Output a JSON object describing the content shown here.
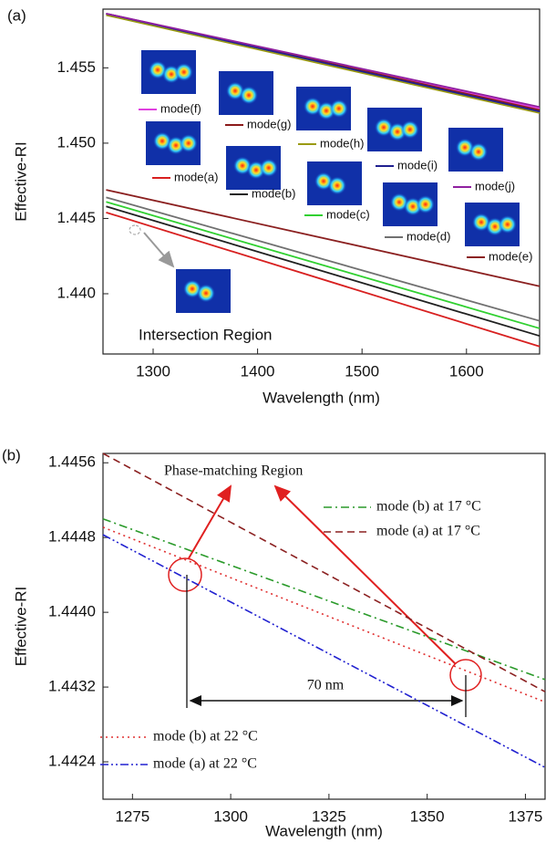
{
  "chart_data": [
    {
      "type": "line",
      "panel_label": "(a)",
      "xlabel": "Wavelength (nm)",
      "ylabel": "Effective-RI",
      "annotations": [
        "Intersection Region"
      ],
      "x": [
        1255,
        1670
      ],
      "series": [
        {
          "name": "mode(f)",
          "color": "#e040e0",
          "dash": "solid",
          "values": [
            1.4586,
            1.4523
          ]
        },
        {
          "name": "mode(g)",
          "color": "#8b1a1a",
          "dash": "solid",
          "values": [
            1.4586,
            1.4522
          ]
        },
        {
          "name": "mode(h)",
          "color": "#9a9a10",
          "dash": "solid",
          "values": [
            1.4585,
            1.452
          ]
        },
        {
          "name": "mode(i)",
          "color": "#20208f",
          "dash": "solid",
          "values": [
            1.4586,
            1.4521
          ]
        },
        {
          "name": "mode(j)",
          "color": "#9020a0",
          "dash": "solid",
          "values": [
            1.4586,
            1.4524
          ]
        },
        {
          "name": "mode(a)",
          "color": "#d82020",
          "dash": "solid",
          "values": [
            1.4454,
            1.4365
          ]
        },
        {
          "name": "mode(b)",
          "color": "#202020",
          "dash": "solid",
          "values": [
            1.4458,
            1.4372
          ]
        },
        {
          "name": "mode(c)",
          "color": "#30d030",
          "dash": "solid",
          "values": [
            1.4461,
            1.4377
          ]
        },
        {
          "name": "mode(d)",
          "color": "#707070",
          "dash": "solid",
          "values": [
            1.4464,
            1.4382
          ]
        },
        {
          "name": "mode(e)",
          "color": "#8b2020",
          "dash": "solid",
          "values": [
            1.4469,
            1.4405
          ]
        }
      ],
      "xlim": [
        1252,
        1670
      ],
      "ylim": [
        1.436,
        1.4589
      ],
      "xticks": [
        1300,
        1400,
        1500,
        1600
      ],
      "yticks": [
        {
          "value": 1.44,
          "label": "1.440"
        },
        1.445,
        {
          "value": 1.45,
          "label": "1.450"
        },
        1.455
      ],
      "grid": false
    },
    {
      "type": "line",
      "panel_label": "(b)",
      "xlabel": "Wavelength (nm)",
      "ylabel": "Effective-RI",
      "annotations": [
        "Phase-matching Region",
        "70 nm"
      ],
      "x": [
        1267.5,
        1380
      ],
      "series": [
        {
          "name": "mode (b) at 17 °C",
          "color": "#2a9a2a",
          "dash": "dashdot",
          "values": [
            1.445,
            1.44328
          ]
        },
        {
          "name": "mode (a) at 17 °C",
          "color": "#8b2020",
          "dash": "dash",
          "values": [
            1.4457,
            1.44315
          ]
        },
        {
          "name": "mode (b) at 22 °C",
          "color": "#e03030",
          "dash": "dot",
          "values": [
            1.44491,
            1.44304
          ]
        },
        {
          "name": "mode (a) at 22 °C",
          "color": "#2020d0",
          "dash": "dashdotdot",
          "values": [
            1.44483,
            1.44234
          ]
        }
      ],
      "xlim": [
        1267.5,
        1380
      ],
      "ylim": [
        1.442,
        1.4457
      ],
      "xticks": [
        1275,
        1300,
        1325,
        1350,
        1375
      ],
      "yticks": [
        1.4424,
        1.4432,
        {
          "value": 1.444,
          "label": "1.4440"
        },
        1.4448,
        1.4456
      ],
      "grid": false
    }
  ]
}
